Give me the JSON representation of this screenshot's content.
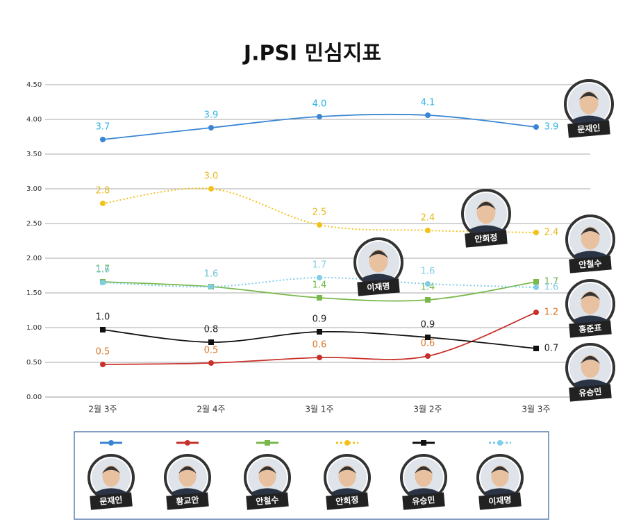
{
  "chart_data": {
    "type": "line",
    "title": "J.PSI 민심지표",
    "categories": [
      "2월 3주",
      "2월 4주",
      "3월 1주",
      "3월 2주",
      "3월 3주"
    ],
    "ylim": [
      0,
      4.5
    ],
    "yticks": [
      {
        "value": 0,
        "label": "0.00"
      },
      {
        "value": 0.5,
        "label": "0.50"
      },
      {
        "value": 1,
        "label": "1.00"
      },
      {
        "value": 1.5,
        "label": "1.50"
      },
      {
        "value": 2,
        "label": "2.00"
      },
      {
        "value": 2.5,
        "label": "2.50"
      },
      {
        "value": 3,
        "label": "3.00"
      },
      {
        "value": 3.5,
        "label": "3.50"
      },
      {
        "value": 4,
        "label": "4.00"
      },
      {
        "value": 4.5,
        "label": "4.50"
      }
    ],
    "grid": true,
    "series": [
      {
        "name": "문재인",
        "color": "#3a86d4",
        "label_color": "#2db3e6",
        "marker": "circle",
        "style": "solid",
        "values": [
          3.71,
          3.88,
          4.04,
          4.06,
          3.89
        ],
        "value_labels": [
          "3.7",
          "3.9",
          "4.0",
          "4.1",
          "3.9"
        ]
      },
      {
        "name": "황교안",
        "color": "#c8302a",
        "label_color": "#d9782a",
        "marker": "circle",
        "style": "solid",
        "values": [
          0.47,
          0.49,
          0.57,
          0.59,
          1.22
        ],
        "value_labels": [
          "0.5",
          "0.5",
          "0.6",
          "0.6",
          "1.2"
        ]
      },
      {
        "name": "안철수",
        "color": "#79b84a",
        "label_color": "#6cb33f",
        "marker": "square",
        "style": "solid",
        "values": [
          1.66,
          1.59,
          1.43,
          1.4,
          1.66
        ],
        "value_labels": [
          "1.7",
          "1.6",
          "1.4",
          "1.4",
          "1.7"
        ]
      },
      {
        "name": "안희정",
        "color": "#f2c21b",
        "label_color": "#e8b820",
        "marker": "circle",
        "style": "dotted",
        "values": [
          2.79,
          3.0,
          2.48,
          2.4,
          2.37
        ],
        "value_labels": [
          "2.8",
          "3.0",
          "2.5",
          "2.4",
          "2.4"
        ]
      },
      {
        "name": "유승민",
        "color": "#111111",
        "label_color": "#222222",
        "marker": "square",
        "style": "solid",
        "values": [
          0.97,
          0.79,
          0.94,
          0.86,
          0.7
        ],
        "value_labels": [
          "1.0",
          "0.8",
          "0.9",
          "0.9",
          "0.7"
        ]
      },
      {
        "name": "이재명",
        "color": "#7fcde8",
        "label_color": "#7fcde8",
        "marker": "circle",
        "style": "dotted",
        "values": [
          1.65,
          1.59,
          1.72,
          1.63,
          1.58
        ],
        "value_labels": [
          "1.6",
          "1.6",
          "1.7",
          "1.6",
          "1.6"
        ]
      }
    ],
    "portraits": [
      "문재인",
      "안희정",
      "안철수",
      "이재명",
      "홍준표",
      "유승민"
    ]
  }
}
